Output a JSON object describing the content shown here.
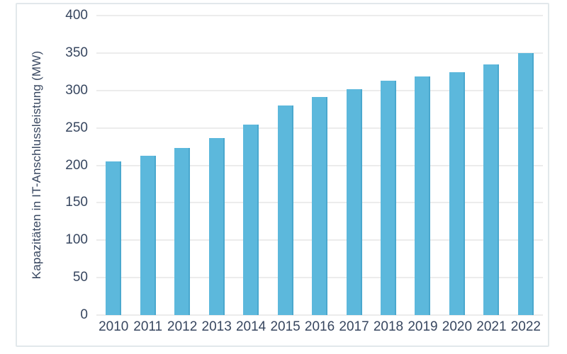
{
  "chart_data": {
    "type": "bar",
    "title": "",
    "categories": [
      "2010",
      "2011",
      "2012",
      "2013",
      "2014",
      "2015",
      "2016",
      "2017",
      "2018",
      "2019",
      "2020",
      "2021",
      "2022"
    ],
    "values": [
      205,
      213,
      223,
      236,
      254,
      280,
      291,
      302,
      313,
      319,
      324,
      335,
      350
    ],
    "ylabel": "Kapazitäten in IT-Anschlussleistung (MW)",
    "xlabel": "",
    "ylim": [
      0,
      400
    ],
    "yticks": [
      0,
      50,
      100,
      150,
      200,
      250,
      300,
      350,
      400
    ],
    "grid": "horizontal-only",
    "legend": "none",
    "colors": {
      "bar_fill": "#5CB8DC",
      "bar_edge": "#4AA8CE",
      "gridline": "#ECECEC",
      "axis_text": "#37465F",
      "frame_border": "#E2E8EB",
      "background": "#FFFFFF"
    }
  }
}
